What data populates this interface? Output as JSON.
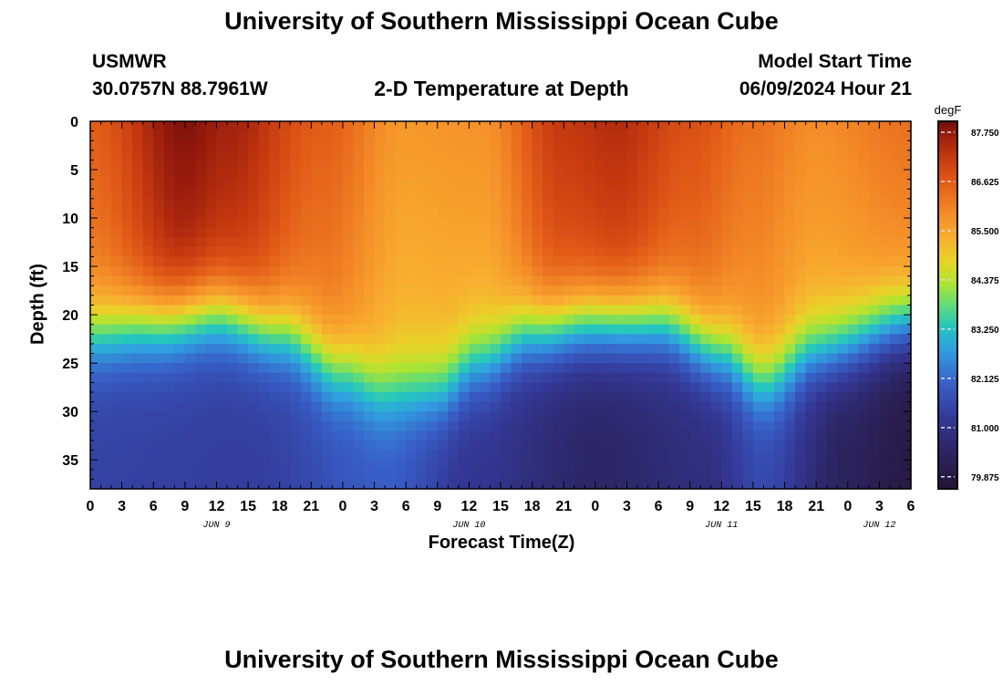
{
  "header": {
    "title": "University of Southern Mississippi Ocean Cube",
    "station": "USMWR",
    "coords": "30.0757N  88.7961W",
    "subtitle": "2-D Temperature at Depth",
    "start_label": "Model Start Time",
    "start_value": "06/09/2024 Hour 21",
    "footer_title": "University of Southern Mississippi Ocean Cube"
  },
  "chart_data": {
    "type": "heatmap",
    "title": "2-D Temperature at Depth",
    "xlabel": "Forecast Time(Z)",
    "ylabel": "Depth (ft)",
    "colorbar_label": "degF",
    "x_range": [
      0,
      78
    ],
    "y_range": [
      0,
      38
    ],
    "x_ticks": [
      0,
      3,
      6,
      9,
      12,
      15,
      18,
      21,
      24,
      27,
      30,
      33,
      36,
      39,
      42,
      45,
      48,
      51,
      54,
      57,
      60,
      63,
      66,
      69,
      72,
      75,
      78
    ],
    "x_tick_labels": [
      "0",
      "3",
      "6",
      "9",
      "12",
      "15",
      "18",
      "21",
      "0",
      "3",
      "6",
      "9",
      "12",
      "15",
      "18",
      "21",
      "0",
      "3",
      "6",
      "9",
      "12",
      "15",
      "18",
      "21",
      "0",
      "3",
      "6"
    ],
    "y_ticks": [
      0,
      5,
      10,
      15,
      20,
      25,
      30,
      35
    ],
    "y_tick_labels": [
      "0",
      "5",
      "10",
      "15",
      "20",
      "25",
      "30",
      "35"
    ],
    "day_labels": [
      {
        "label": "JUN 9",
        "hour": 12
      },
      {
        "label": "JUN 10",
        "hour": 36
      },
      {
        "label": "JUN 11",
        "hour": 60
      },
      {
        "label": "JUN 12",
        "hour": 75
      }
    ],
    "colorbar_ticks": [
      {
        "value": 87.75,
        "label": "87.750"
      },
      {
        "value": 86.625,
        "label": "86.625"
      },
      {
        "value": 85.5,
        "label": "85.500"
      },
      {
        "value": 84.375,
        "label": "84.375"
      },
      {
        "value": 83.25,
        "label": "83.250"
      },
      {
        "value": 82.125,
        "label": "82.125"
      },
      {
        "value": 81.0,
        "label": "81.000"
      },
      {
        "value": 79.875,
        "label": "79.875"
      }
    ],
    "colorbar_range": [
      79.6,
      88.0
    ],
    "thermocline_depth_by_hour": [
      {
        "hour": 0,
        "depth": 22
      },
      {
        "hour": 6,
        "depth": 21
      },
      {
        "hour": 12,
        "depth": 20
      },
      {
        "hour": 18,
        "depth": 22
      },
      {
        "hour": 24,
        "depth": 26
      },
      {
        "hour": 28,
        "depth": 28
      },
      {
        "hour": 33,
        "depth": 28
      },
      {
        "hour": 37,
        "depth": 25
      },
      {
        "hour": 42,
        "depth": 22
      },
      {
        "hour": 48,
        "depth": 21
      },
      {
        "hour": 54,
        "depth": 21
      },
      {
        "hour": 60,
        "depth": 24
      },
      {
        "hour": 64,
        "depth": 27
      },
      {
        "hour": 69,
        "depth": 24
      },
      {
        "hour": 78,
        "depth": 21
      }
    ],
    "surface_temperature_by_hour": [
      {
        "hour": 0,
        "value": 86.6
      },
      {
        "hour": 9,
        "value": 87.9
      },
      {
        "hour": 13,
        "value": 87.6
      },
      {
        "hour": 22,
        "value": 86.6
      },
      {
        "hour": 30,
        "value": 85.7
      },
      {
        "hour": 37,
        "value": 85.8
      },
      {
        "hour": 45,
        "value": 87.2
      },
      {
        "hour": 50,
        "value": 87.4
      },
      {
        "hour": 57,
        "value": 86.8
      },
      {
        "hour": 63,
        "value": 86.3
      },
      {
        "hour": 69,
        "value": 85.9
      },
      {
        "hour": 78,
        "value": 86.3
      }
    ],
    "deep_temperature_by_hour": [
      {
        "hour": 0,
        "value": 81.4
      },
      {
        "hour": 15,
        "value": 81.3
      },
      {
        "hour": 28,
        "value": 81.9
      },
      {
        "hour": 36,
        "value": 81.1
      },
      {
        "hour": 48,
        "value": 80.5
      },
      {
        "hour": 58,
        "value": 80.8
      },
      {
        "hour": 64,
        "value": 81.5
      },
      {
        "hour": 72,
        "value": 80.3
      },
      {
        "hour": 78,
        "value": 79.9
      }
    ]
  }
}
